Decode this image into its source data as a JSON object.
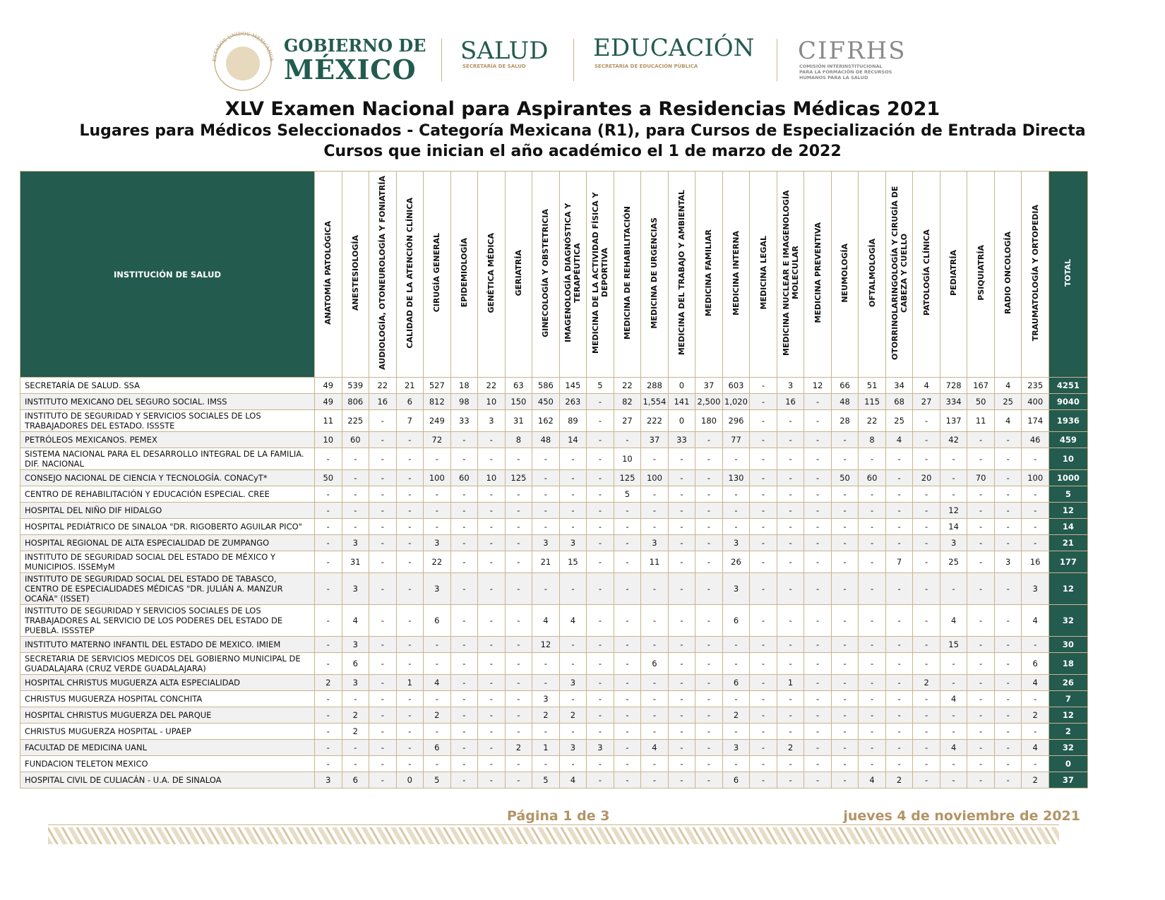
{
  "header": {
    "seal_text": "ESTADOS UNIDOS MEXICANOS",
    "gobierno_line1": "GOBIERNO DE",
    "gobierno_line2": "MÉXICO",
    "salud": "SALUD",
    "salud_sub": "SECRETARÍA DE SALUD",
    "educacion": "EDUCACIÓN",
    "educacion_sub": "SECRETARÍA DE EDUCACIÓN PÚBLICA",
    "cifrhs": "CIFRHS",
    "cifrhs_sub": [
      "COMISIÓN INTERINSTITUCIONAL",
      "PARA LA FORMACIÓN DE RECURSOS",
      "HUMANOS PARA LA SALUD"
    ]
  },
  "title": "XLV Examen Nacional para Aspirantes a Residencias Médicas 2021",
  "subtitle": "Lugares para Médicos Seleccionados - Categoría Mexicana (R1), para Cursos de Especialización de Entrada Directa",
  "subtitle2": "Cursos que inician el año académico el 1 de marzo de 2022",
  "table": {
    "columns": [
      "INSTITUCIÓN DE SALUD",
      "ANATOMÍA PATOLÓGICA",
      "ANESTESIOLOGÍA",
      "AUDIOLOGÍA, OTONEUROLOGÍA Y FONIATRÍA",
      "CALIDAD DE LA ATENCIÓN CLÍNICA",
      "CIRUGÍA GENERAL",
      "EPIDEMIOLOGÍA",
      "GENÉTICA MÉDICA",
      "GERIATRÍA",
      "GINECOLOGÍA Y OBSTETRICIA",
      "IMAGENOLOGÍA DIAGNÓSTICA Y TERAPÉUTICA",
      "MEDICINA DE LA ACTIVIDAD FÍSICA Y DEPORTIVA",
      "MEDICINA DE REHABILITACIÓN",
      "MEDICINA DE URGENCIAS",
      "MEDICINA DEL TRABAJO Y AMBIENTAL",
      "MEDICINA FAMILIAR",
      "MEDICINA INTERNA",
      "MEDICINA LEGAL",
      "MEDICINA NUCLEAR E IMAGENOLOGÍA MOLECULAR",
      "MEDICINA PREVENTIVA",
      "NEUMOLOGÍA",
      "OFTALMOLOGÍA",
      "OTORRINOLARINGOLOGÍA Y CIRUGÍA DE CABEZA Y CUELLO",
      "PATOLOGÍA CLÍNICA",
      "PEDIATRÍA",
      "PSIQUIATRÍA",
      "RADIO ONCOLOGÍA",
      "TRAUMATOLOGÍA Y ORTOPEDIA",
      "TOTAL"
    ],
    "rows": [
      [
        "SECRETARÍA DE SALUD. SSA",
        "49",
        "539",
        "22",
        "21",
        "527",
        "18",
        "22",
        "63",
        "586",
        "145",
        "5",
        "22",
        "288",
        "0",
        "37",
        "603",
        "-",
        "3",
        "12",
        "66",
        "51",
        "34",
        "4",
        "728",
        "167",
        "4",
        "235",
        "4251"
      ],
      [
        "INSTITUTO MEXICANO DEL SEGURO SOCIAL. IMSS",
        "49",
        "806",
        "16",
        "6",
        "812",
        "98",
        "10",
        "150",
        "450",
        "263",
        "-",
        "82",
        "1,554",
        "141",
        "2,500",
        "1,020",
        "-",
        "16",
        "-",
        "48",
        "115",
        "68",
        "27",
        "334",
        "50",
        "25",
        "400",
        "9040"
      ],
      [
        "INSTITUTO DE SEGURIDAD Y SERVICIOS SOCIALES DE LOS TRABAJADORES DEL ESTADO. ISSSTE",
        "11",
        "225",
        "-",
        "7",
        "249",
        "33",
        "3",
        "31",
        "162",
        "89",
        "-",
        "27",
        "222",
        "0",
        "180",
        "296",
        "-",
        "-",
        "-",
        "28",
        "22",
        "25",
        "-",
        "137",
        "11",
        "4",
        "174",
        "1936"
      ],
      [
        "PETRÓLEOS MEXICANOS. PEMEX",
        "10",
        "60",
        "-",
        "-",
        "72",
        "-",
        "-",
        "8",
        "48",
        "14",
        "-",
        "-",
        "37",
        "33",
        "-",
        "77",
        "-",
        "-",
        "-",
        "-",
        "8",
        "4",
        "-",
        "42",
        "-",
        "-",
        "46",
        "459"
      ],
      [
        "SISTEMA NACIONAL PARA EL DESARROLLO INTEGRAL DE LA FAMILIA. DIF. NACIONAL",
        "-",
        "-",
        "-",
        "-",
        "-",
        "-",
        "-",
        "-",
        "-",
        "-",
        "-",
        "10",
        "-",
        "-",
        "-",
        "-",
        "-",
        "-",
        "-",
        "-",
        "-",
        "-",
        "-",
        "-",
        "-",
        "-",
        "-",
        "10"
      ],
      [
        "CONSEJO NACIONAL DE CIENCIA Y TECNOLOGÍA. CONACyT*",
        "50",
        "-",
        "-",
        "-",
        "100",
        "60",
        "10",
        "125",
        "-",
        "-",
        "-",
        "125",
        "100",
        "-",
        "-",
        "130",
        "-",
        "-",
        "-",
        "50",
        "60",
        "-",
        "20",
        "-",
        "70",
        "-",
        "100",
        "1000"
      ],
      [
        "CENTRO DE REHABILITACIÓN Y EDUCACIÓN ESPECIAL. CREE",
        "-",
        "-",
        "-",
        "-",
        "-",
        "-",
        "-",
        "-",
        "-",
        "-",
        "-",
        "5",
        "-",
        "-",
        "-",
        "-",
        "-",
        "-",
        "-",
        "-",
        "-",
        "-",
        "-",
        "-",
        "-",
        "-",
        "-",
        "5"
      ],
      [
        "HOSPITAL DEL NIÑO DIF HIDALGO",
        "-",
        "-",
        "-",
        "-",
        "-",
        "-",
        "-",
        "-",
        "-",
        "-",
        "-",
        "-",
        "-",
        "-",
        "-",
        "-",
        "-",
        "-",
        "-",
        "-",
        "-",
        "-",
        "-",
        "12",
        "-",
        "-",
        "-",
        "12"
      ],
      [
        "HOSPITAL PEDIÁTRICO DE SINALOA \"DR. RIGOBERTO AGUILAR PICO\"",
        "-",
        "-",
        "-",
        "-",
        "-",
        "-",
        "-",
        "-",
        "-",
        "-",
        "-",
        "-",
        "-",
        "-",
        "-",
        "-",
        "-",
        "-",
        "-",
        "-",
        "-",
        "-",
        "-",
        "14",
        "-",
        "-",
        "-",
        "14"
      ],
      [
        "HOSPITAL REGIONAL DE ALTA ESPECIALIDAD DE ZUMPANGO",
        "-",
        "3",
        "-",
        "-",
        "3",
        "-",
        "-",
        "-",
        "3",
        "3",
        "-",
        "-",
        "3",
        "-",
        "-",
        "3",
        "-",
        "-",
        "-",
        "-",
        "-",
        "-",
        "-",
        "3",
        "-",
        "-",
        "-",
        "21"
      ],
      [
        "INSTITUTO DE SEGURIDAD SOCIAL DEL ESTADO DE MÉXICO Y MUNICIPIOS. ISSEMyM",
        "-",
        "31",
        "-",
        "-",
        "22",
        "-",
        "-",
        "-",
        "21",
        "15",
        "-",
        "-",
        "11",
        "-",
        "-",
        "26",
        "-",
        "-",
        "-",
        "-",
        "-",
        "7",
        "-",
        "25",
        "-",
        "3",
        "16",
        "177"
      ],
      [
        "INSTITUTO DE SEGURIDAD SOCIAL DEL ESTADO DE TABASCO, CENTRO DE ESPECIALIDADES MÉDICAS \"DR. JULIÁN A. MANZUR OCAÑA\" (ISSET)",
        "-",
        "3",
        "-",
        "-",
        "3",
        "-",
        "-",
        "-",
        "-",
        "-",
        "-",
        "-",
        "-",
        "-",
        "-",
        "3",
        "-",
        "-",
        "-",
        "-",
        "-",
        "-",
        "-",
        "-",
        "-",
        "-",
        "3",
        "12"
      ],
      [
        "INSTITUTO DE SEGURIDAD Y SERVICIOS SOCIALES DE LOS TRABAJADORES AL SERVICIO DE LOS PODERES DEL ESTADO DE PUEBLA. ISSSTEP",
        "-",
        "4",
        "-",
        "-",
        "6",
        "-",
        "-",
        "-",
        "4",
        "4",
        "-",
        "-",
        "-",
        "-",
        "-",
        "6",
        "-",
        "-",
        "-",
        "-",
        "-",
        "-",
        "-",
        "4",
        "-",
        "-",
        "4",
        "32"
      ],
      [
        "INSTITUTO MATERNO INFANTIL DEL ESTADO DE MEXICO. IMIEM",
        "-",
        "3",
        "-",
        "-",
        "-",
        "-",
        "-",
        "-",
        "12",
        "-",
        "-",
        "-",
        "-",
        "-",
        "-",
        "-",
        "-",
        "-",
        "-",
        "-",
        "-",
        "-",
        "-",
        "15",
        "-",
        "-",
        "-",
        "30"
      ],
      [
        "SECRETARIA DE SERVICIOS MEDICOS DEL GOBIERNO MUNICIPAL DE GUADALAJARA (CRUZ VERDE GUADALAJARA)",
        "-",
        "6",
        "-",
        "-",
        "-",
        "-",
        "-",
        "-",
        "-",
        "-",
        "-",
        "-",
        "6",
        "-",
        "-",
        "-",
        "-",
        "-",
        "-",
        "-",
        "-",
        "-",
        "-",
        "-",
        "-",
        "-",
        "6",
        "18"
      ],
      [
        "HOSPITAL CHRISTUS MUGUERZA ALTA ESPECIALIDAD",
        "2",
        "3",
        "-",
        "1",
        "4",
        "-",
        "-",
        "-",
        "-",
        "3",
        "-",
        "-",
        "-",
        "-",
        "-",
        "6",
        "-",
        "1",
        "-",
        "-",
        "-",
        "-",
        "2",
        "-",
        "-",
        "-",
        "4",
        "26"
      ],
      [
        "CHRISTUS MUGUERZA HOSPITAL CONCHITA",
        "-",
        "-",
        "-",
        "-",
        "-",
        "-",
        "-",
        "-",
        "3",
        "-",
        "-",
        "-",
        "-",
        "-",
        "-",
        "-",
        "-",
        "-",
        "-",
        "-",
        "-",
        "-",
        "-",
        "4",
        "-",
        "-",
        "-",
        "7"
      ],
      [
        "HOSPITAL CHRISTUS MUGUERZA DEL PARQUE",
        "-",
        "2",
        "-",
        "-",
        "2",
        "-",
        "-",
        "-",
        "2",
        "2",
        "-",
        "-",
        "-",
        "-",
        "-",
        "2",
        "-",
        "-",
        "-",
        "-",
        "-",
        "-",
        "-",
        "-",
        "-",
        "-",
        "2",
        "12"
      ],
      [
        "CHRISTUS MUGUERZA HOSPITAL - UPAEP",
        "-",
        "2",
        "-",
        "-",
        "-",
        "-",
        "-",
        "-",
        "-",
        "-",
        "-",
        "-",
        "-",
        "-",
        "-",
        "-",
        "-",
        "-",
        "-",
        "-",
        "-",
        "-",
        "-",
        "-",
        "-",
        "-",
        "-",
        "2"
      ],
      [
        "FACULTAD DE MEDICINA UANL",
        "-",
        "-",
        "-",
        "-",
        "6",
        "-",
        "-",
        "2",
        "1",
        "3",
        "3",
        "-",
        "4",
        "-",
        "-",
        "3",
        "-",
        "2",
        "-",
        "-",
        "-",
        "-",
        "-",
        "4",
        "-",
        "-",
        "4",
        "32"
      ],
      [
        "FUNDACION TELETON MEXICO",
        "-",
        "-",
        "-",
        "-",
        "-",
        "-",
        "-",
        "-",
        "-",
        "-",
        "-",
        "-",
        "-",
        "-",
        "-",
        "-",
        "-",
        "-",
        "-",
        "-",
        "-",
        "-",
        "-",
        "-",
        "-",
        "-",
        "-",
        "0"
      ],
      [
        "HOSPITAL CIVIL DE CULIACÁN - U.A. DE SINALOA",
        "3",
        "6",
        "-",
        "0",
        "5",
        "-",
        "-",
        "-",
        "5",
        "4",
        "-",
        "-",
        "-",
        "-",
        "-",
        "6",
        "-",
        "-",
        "-",
        "-",
        "4",
        "2",
        "-",
        "-",
        "-",
        "-",
        "2",
        "37"
      ]
    ]
  },
  "footer": {
    "page": "Página 1 de 3",
    "date": "jueves 4 de noviembre de 2021"
  }
}
